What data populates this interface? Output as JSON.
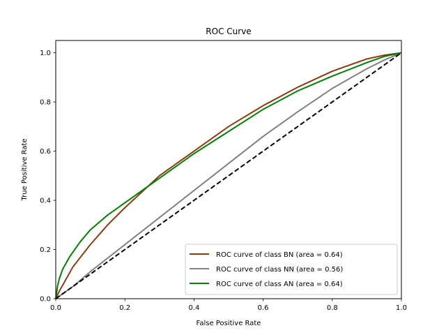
{
  "chart_data": {
    "type": "line",
    "title": "ROC Curve",
    "xlabel": "False Positive Rate",
    "ylabel": "True Positive Rate",
    "xlim": [
      0.0,
      1.0
    ],
    "ylim": [
      0.0,
      1.05
    ],
    "xticks": [
      "0.0",
      "0.2",
      "0.4",
      "0.6",
      "0.8",
      "1.0"
    ],
    "yticks": [
      "0.0",
      "0.2",
      "0.4",
      "0.6",
      "0.8",
      "1.0"
    ],
    "grid": false,
    "legend_position": "bottom-right",
    "series": [
      {
        "name": "ROC curve of class BN (area = 0.64)",
        "color": "#8b3a0f",
        "x": [
          0.0,
          0.01,
          0.03,
          0.05,
          0.1,
          0.15,
          0.2,
          0.3,
          0.4,
          0.5,
          0.6,
          0.7,
          0.8,
          0.9,
          0.95,
          1.0
        ],
        "y": [
          0.0,
          0.03,
          0.08,
          0.13,
          0.22,
          0.3,
          0.37,
          0.5,
          0.6,
          0.7,
          0.785,
          0.86,
          0.925,
          0.975,
          0.99,
          1.0
        ]
      },
      {
        "name": "ROC curve of class NN (area = 0.56)",
        "color": "#808080",
        "x": [
          0.0,
          0.02,
          0.05,
          0.1,
          0.2,
          0.3,
          0.4,
          0.5,
          0.6,
          0.7,
          0.8,
          0.9,
          0.95,
          1.0
        ],
        "y": [
          0.0,
          0.02,
          0.05,
          0.11,
          0.22,
          0.33,
          0.44,
          0.55,
          0.66,
          0.76,
          0.855,
          0.935,
          0.97,
          1.0
        ]
      },
      {
        "name": "ROC curve of class AN (area = 0.64)",
        "color": "#008000",
        "x": [
          0.0,
          0.005,
          0.01,
          0.02,
          0.04,
          0.07,
          0.1,
          0.15,
          0.2,
          0.3,
          0.4,
          0.5,
          0.6,
          0.7,
          0.8,
          0.9,
          0.95,
          1.0
        ],
        "y": [
          0.0,
          0.05,
          0.08,
          0.12,
          0.17,
          0.23,
          0.28,
          0.34,
          0.39,
          0.49,
          0.59,
          0.68,
          0.77,
          0.845,
          0.905,
          0.96,
          0.985,
          1.0
        ]
      },
      {
        "name": "",
        "color": "#000000",
        "dashed": true,
        "x": [
          0.0,
          1.0
        ],
        "y": [
          0.0,
          1.0
        ]
      }
    ]
  }
}
